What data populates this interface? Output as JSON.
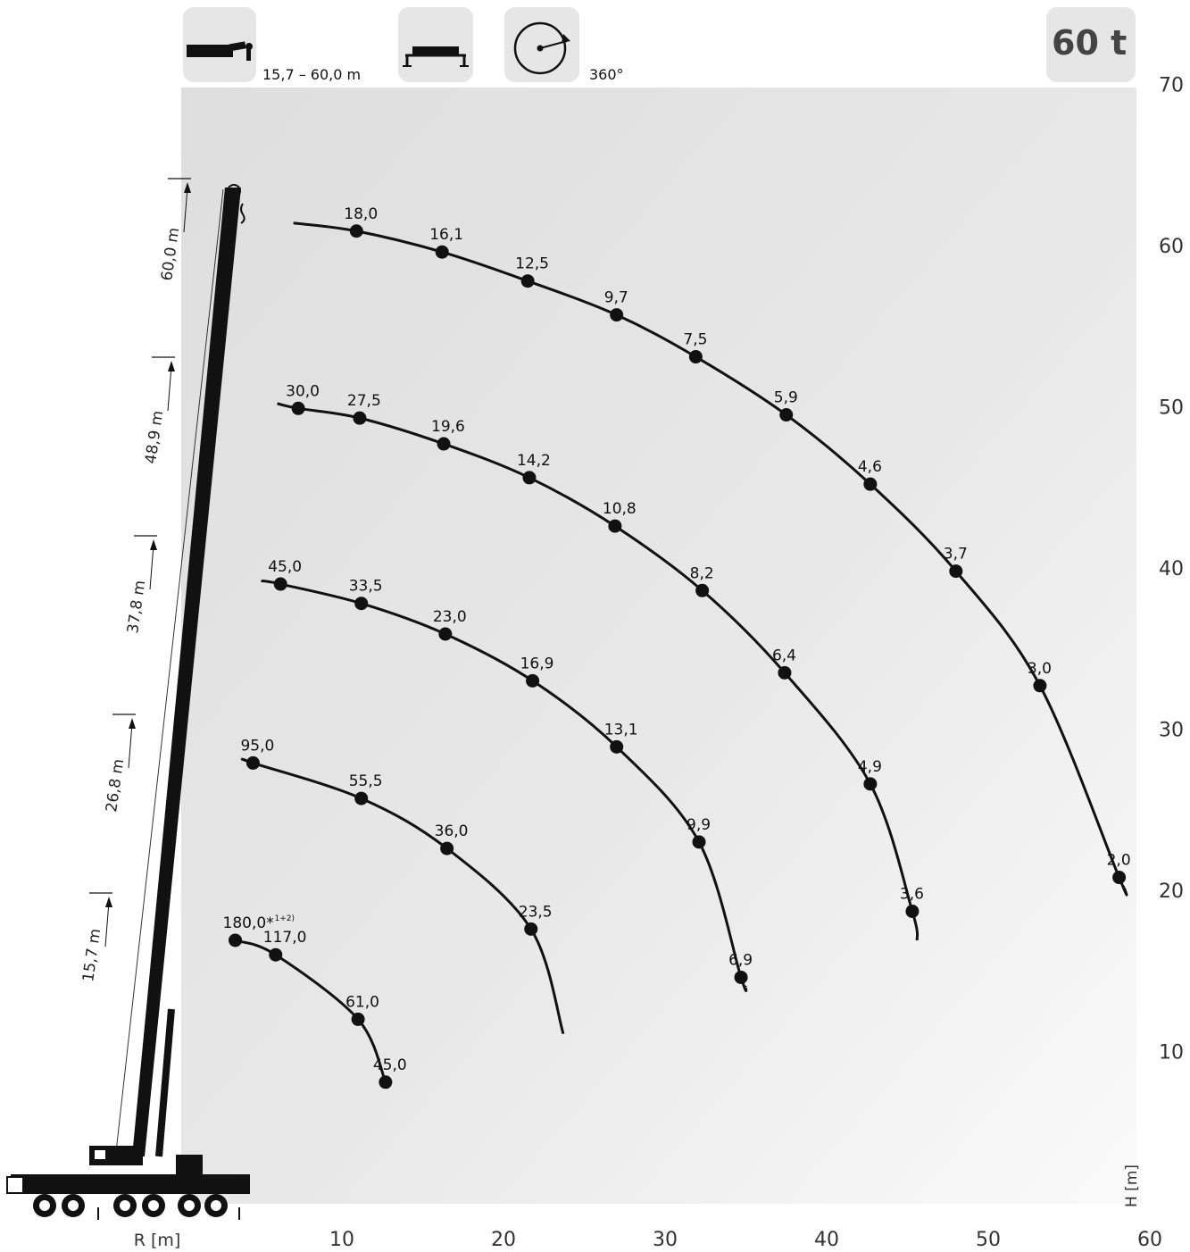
{
  "header": {
    "boom_range": "15,7 – 60,0 m",
    "slew": "360°",
    "capacity": "60 t",
    "icons": [
      "telescopic-boom-icon",
      "outrigger-icon",
      "slewing-circle-icon"
    ]
  },
  "chart_data": {
    "type": "line",
    "xlabel": "R [m]",
    "ylabel": "H [m]",
    "xlim": [
      0,
      60
    ],
    "ylim": [
      0,
      70
    ],
    "xticks": [
      10,
      20,
      30,
      40,
      50,
      60
    ],
    "yticks": [
      10,
      20,
      30,
      40,
      50,
      60,
      70
    ],
    "grid": false,
    "colors": {
      "background": "#e4e4e4",
      "curve": "#111111",
      "boom": "#111111"
    },
    "boom_lengths": [
      "15,7 m",
      "26,8 m",
      "37,8 m",
      "48,9 m",
      "60,0 m"
    ],
    "series": [
      {
        "name": "15,7 m",
        "start": [
          3,
          17.0
        ],
        "end": [
          12.7,
          8.0
        ],
        "points": [
          {
            "x": 3.4,
            "y": 16.9,
            "label": "180,0*",
            "note": "1+2)"
          },
          {
            "x": 5.9,
            "y": 16.0,
            "label": "117,0"
          },
          {
            "x": 11.0,
            "y": 12.0,
            "label": "61,0"
          },
          {
            "x": 12.7,
            "y": 8.1,
            "label": "45,0"
          }
        ]
      },
      {
        "name": "26,8 m",
        "start": [
          4,
          28.1
        ],
        "end": [
          23.7,
          11.1
        ],
        "points": [
          {
            "x": 4.5,
            "y": 27.9,
            "label": "95,0"
          },
          {
            "x": 11.2,
            "y": 25.7,
            "label": "55,5"
          },
          {
            "x": 16.5,
            "y": 22.6,
            "label": "36,0"
          },
          {
            "x": 21.7,
            "y": 17.6,
            "label": "23,5"
          }
        ]
      },
      {
        "name": "37,8 m",
        "start": [
          5,
          39.2
        ],
        "end": [
          35.0,
          14.0
        ],
        "points": [
          {
            "x": 6.2,
            "y": 39.0,
            "label": "45,0"
          },
          {
            "x": 11.2,
            "y": 37.8,
            "label": "33,5"
          },
          {
            "x": 16.4,
            "y": 35.9,
            "label": "23,0"
          },
          {
            "x": 21.8,
            "y": 33.0,
            "label": "16,9"
          },
          {
            "x": 27.0,
            "y": 28.9,
            "label": "13,1"
          },
          {
            "x": 32.1,
            "y": 23.0,
            "label": "9,9"
          },
          {
            "x": 34.7,
            "y": 14.6,
            "label": "6,9"
          }
        ]
      },
      {
        "name": "48,9 m",
        "start": [
          6,
          50.2
        ],
        "end": [
          45.6,
          16.9
        ],
        "points": [
          {
            "x": 7.3,
            "y": 49.9,
            "label": "30,0"
          },
          {
            "x": 11.1,
            "y": 49.3,
            "label": "27,5"
          },
          {
            "x": 16.3,
            "y": 47.7,
            "label": "19,6"
          },
          {
            "x": 21.6,
            "y": 45.6,
            "label": "14,2"
          },
          {
            "x": 26.9,
            "y": 42.6,
            "label": "10,8"
          },
          {
            "x": 32.3,
            "y": 38.6,
            "label": "8,2"
          },
          {
            "x": 37.4,
            "y": 33.5,
            "label": "6,4"
          },
          {
            "x": 42.7,
            "y": 26.6,
            "label": "4,9"
          },
          {
            "x": 45.3,
            "y": 18.7,
            "label": "3,6"
          }
        ]
      },
      {
        "name": "60,0 m",
        "start": [
          7,
          61.4
        ],
        "end": [
          58.4,
          20.2
        ],
        "points": [
          {
            "x": 10.9,
            "y": 60.9,
            "label": "18,0"
          },
          {
            "x": 16.2,
            "y": 59.6,
            "label": "16,1"
          },
          {
            "x": 21.5,
            "y": 57.8,
            "label": "12,5"
          },
          {
            "x": 27.0,
            "y": 55.7,
            "label": "9,7"
          },
          {
            "x": 31.9,
            "y": 53.1,
            "label": "7,5"
          },
          {
            "x": 37.5,
            "y": 49.5,
            "label": "5,9"
          },
          {
            "x": 42.7,
            "y": 45.2,
            "label": "4,6"
          },
          {
            "x": 48.0,
            "y": 39.8,
            "label": "3,7"
          },
          {
            "x": 53.2,
            "y": 32.7,
            "label": "3,0"
          },
          {
            "x": 58.1,
            "y": 20.8,
            "label": "2,0"
          }
        ]
      }
    ]
  }
}
